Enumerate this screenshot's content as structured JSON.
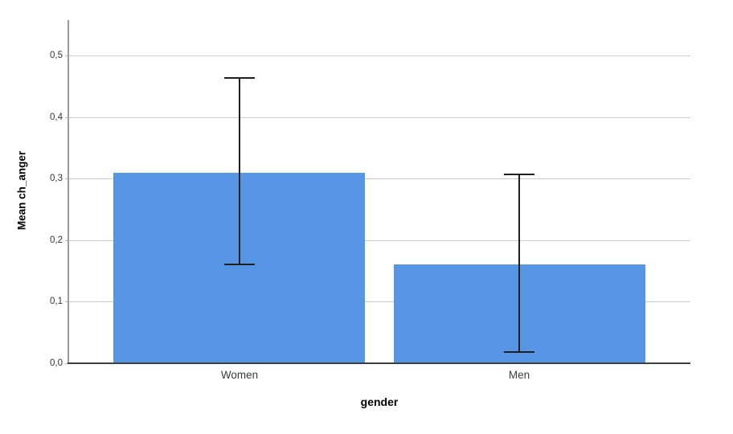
{
  "chart": {
    "bar_color": "#5795E5",
    "gridline_color": "#cbcbcb",
    "y_axis_color": "#9a9a9a",
    "x_axis_color": "#3d3d3d",
    "error_bar_color": "#1f1f1f",
    "background_color": "#ffffff",
    "tick_label_color": "#333333",
    "category_label_color": "#3c3c3c"
  },
  "chart_data": {
    "type": "bar",
    "title": "",
    "categories": [
      "Women",
      "Men"
    ],
    "values": [
      0.31,
      0.16
    ],
    "error_bars": [
      {
        "low": 0.16,
        "high": 0.465
      },
      {
        "low": 0.018,
        "high": 0.308
      }
    ],
    "xlabel": "gender",
    "ylabel": "Mean ch_anger",
    "ylim": [
      0,
      0.5575
    ],
    "yticks": [
      0.0,
      0.1,
      0.2,
      0.3,
      0.4,
      0.5
    ],
    "ytick_labels": [
      "0,0",
      "0,1",
      "0,2",
      "0,3",
      "0,4",
      "0,5"
    ],
    "grid": true,
    "legend": false,
    "decimal_separator": ","
  }
}
